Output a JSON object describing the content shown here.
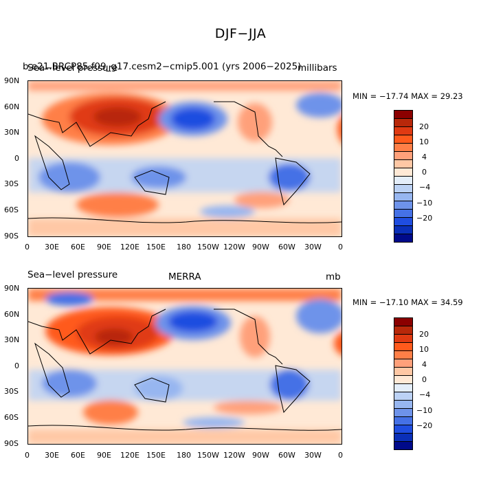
{
  "figure": {
    "title": "DJF−JJA"
  },
  "panels": [
    {
      "label_left": "Sea−level pressure",
      "label_overlap": "b.e21.BRCP85.f09_g17.cesm2−cmip5.001 (yrs 2006−2025)",
      "label_center": "",
      "units": "millibars",
      "stats": "MIN = −17.74  MAX =  29.23"
    },
    {
      "label_left": "Sea−level pressure",
      "label_overlap": "",
      "label_center": "MERRA",
      "units": "mb",
      "stats": "MIN = −17.10  MAX =  34.59"
    }
  ],
  "axes": {
    "lat_ticks": [
      "90N",
      "60N",
      "30N",
      "0",
      "30S",
      "60S",
      "90S"
    ],
    "lon_ticks": [
      "0",
      "30E",
      "60E",
      "90E",
      "120E",
      "150E",
      "180",
      "150W",
      "120W",
      "90W",
      "60W",
      "30W",
      "0"
    ]
  },
  "colorbar": {
    "labels": [
      "20",
      "10",
      "4",
      "0",
      "−4",
      "−10",
      "−20"
    ],
    "colors": [
      "#8b0000",
      "#b8280a",
      "#e03a12",
      "#ff5a1c",
      "#ff7f47",
      "#ffa07a",
      "#ffc8a5",
      "#ffe9d6",
      "#e4eefa",
      "#bcd2f5",
      "#97b6f0",
      "#6e93ea",
      "#4571e6",
      "#1f4de0",
      "#0a2fb8",
      "#000a8a"
    ]
  }
}
